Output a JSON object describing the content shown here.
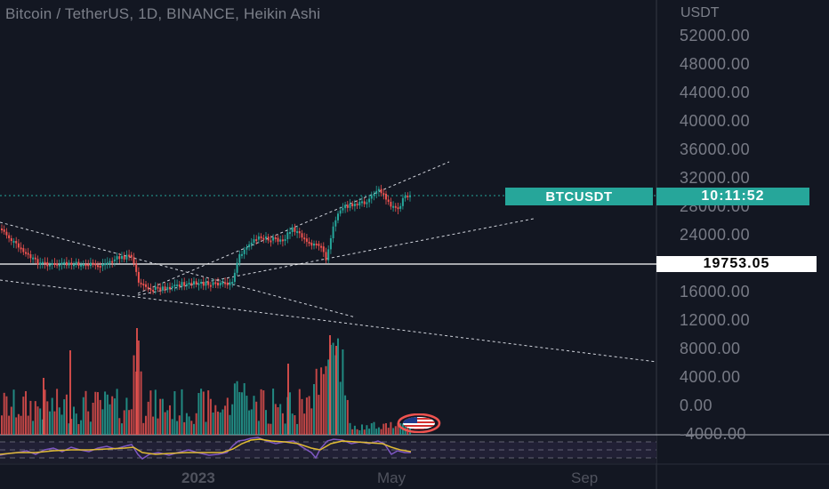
{
  "header": {
    "title": "Bitcoin / TetherUS, 1D, BINANCE, Heikin Ashi",
    "currency": "USDT"
  },
  "price_axis": {
    "labels": [
      "52000.00",
      "48000.00",
      "44000.00",
      "40000.00",
      "36000.00",
      "32000.00",
      "28000.00",
      "24000.00",
      "16000.00",
      "12000.00",
      "8000.00",
      "4000.00",
      "0.00",
      "-4000.00"
    ]
  },
  "time_axis": {
    "labels": [
      "2023",
      "May",
      "Sep"
    ]
  },
  "badges": {
    "symbol": "BTCUSDT",
    "countdown": "10:11:52",
    "horizontal_line_price": "19753.05"
  },
  "colors": {
    "background": "#131722",
    "up": "#26a69a",
    "down": "#ef5350",
    "rsi": "#7e57c2",
    "signal": "#e6c229",
    "line": "#ffffff"
  },
  "icons": {
    "flag": "us-flag-icon"
  }
}
